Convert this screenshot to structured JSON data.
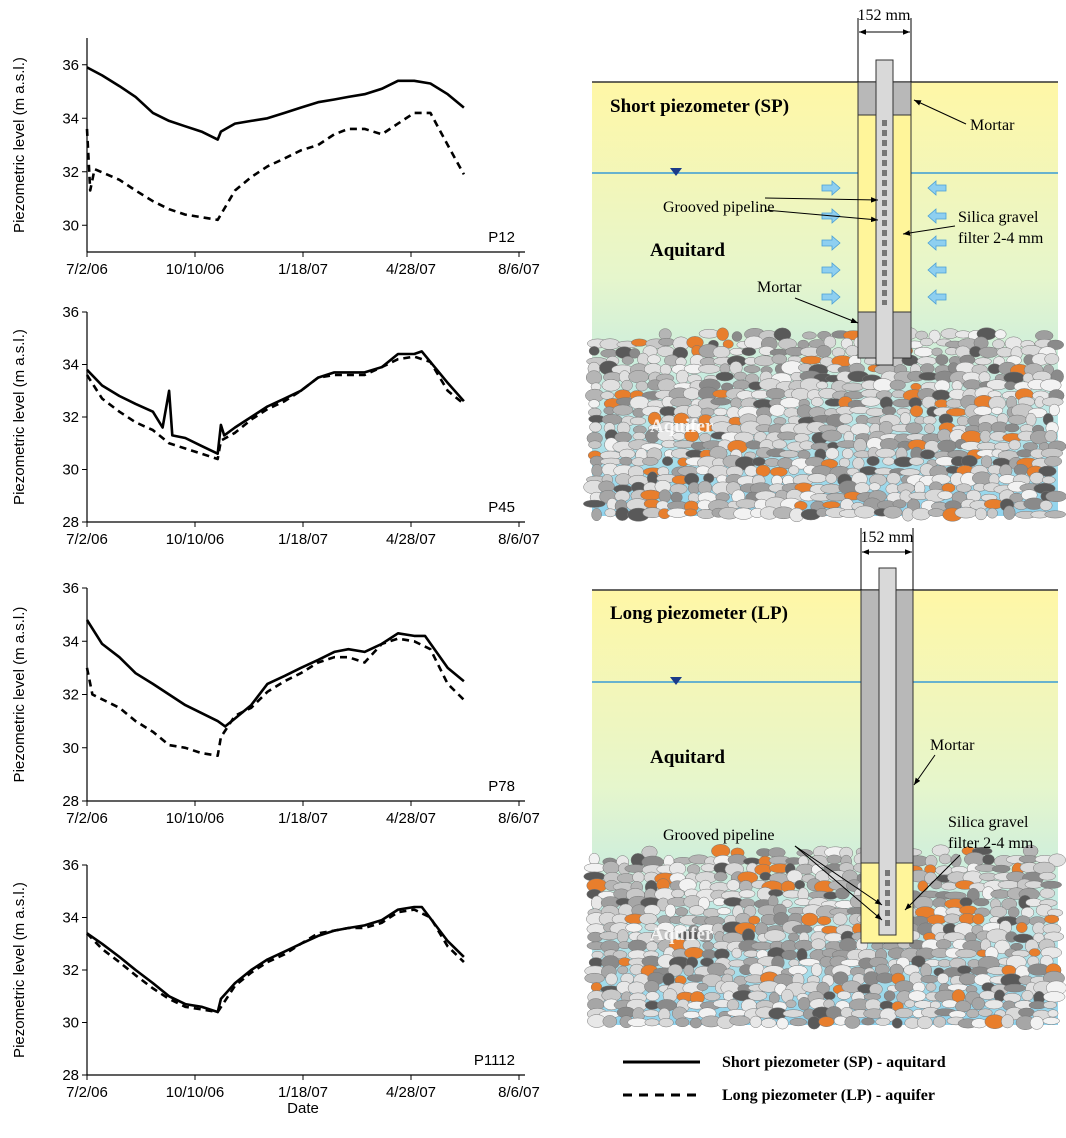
{
  "chart_data": [
    {
      "type": "line",
      "label": "P12",
      "ylabel": "Piezometric level (m a.s.l.)",
      "xlim": [
        "7/2/06",
        "8/6/07"
      ],
      "xticks": [
        "7/2/06",
        "10/10/06",
        "1/18/07",
        "4/28/07",
        "8/6/07"
      ],
      "ylim": [
        29,
        37
      ],
      "yticks": [
        30,
        32,
        34,
        36
      ],
      "series": [
        {
          "name": "Short piezometer (SP) - aquitard",
          "color": "#000000",
          "dash": false,
          "x": [
            "7/2/06",
            "7/16/06",
            "8/1/06",
            "8/16/06",
            "9/1/06",
            "9/16/06",
            "10/1/06",
            "10/16/06",
            "10/31/06",
            "11/3/06",
            "11/16/06",
            "12/1/06",
            "12/16/06",
            "1/1/07",
            "1/16/07",
            "2/1/07",
            "2/16/07",
            "3/1/07",
            "3/16/07",
            "4/1/07",
            "4/16/07",
            "5/1/07",
            "5/16/07",
            "6/1/07",
            "6/16/07"
          ],
          "values": [
            35.9,
            35.6,
            35.2,
            34.8,
            34.2,
            33.9,
            33.7,
            33.5,
            33.2,
            33.5,
            33.8,
            33.9,
            34.0,
            34.2,
            34.4,
            34.6,
            34.7,
            34.8,
            34.9,
            35.1,
            35.4,
            35.4,
            35.3,
            34.9,
            34.4
          ]
        },
        {
          "name": "Long piezometer (LP) - aquifer",
          "color": "#000000",
          "dash": true,
          "x": [
            "7/2/06",
            "7/5/06",
            "7/9/06",
            "8/1/06",
            "8/16/06",
            "9/1/06",
            "9/16/06",
            "10/1/06",
            "10/16/06",
            "10/31/06",
            "11/16/06",
            "12/1/06",
            "12/16/06",
            "1/1/07",
            "1/16/07",
            "2/1/07",
            "2/16/07",
            "3/1/07",
            "3/16/07",
            "4/1/07",
            "4/16/07",
            "5/1/07",
            "5/16/07",
            "6/1/07",
            "6/16/07"
          ],
          "values": [
            33.6,
            31.3,
            32.1,
            31.7,
            31.3,
            30.9,
            30.6,
            30.4,
            30.3,
            30.2,
            31.3,
            31.8,
            32.2,
            32.5,
            32.8,
            33.0,
            33.4,
            33.6,
            33.6,
            33.4,
            33.8,
            34.2,
            34.2,
            33.0,
            31.9
          ]
        }
      ]
    },
    {
      "type": "line",
      "label": "P45",
      "ylabel": "Piezometric level (m a.s.l.)",
      "xlim": [
        "7/2/06",
        "8/6/07"
      ],
      "xticks": [
        "7/2/06",
        "10/10/06",
        "1/18/07",
        "4/28/07",
        "8/6/07"
      ],
      "ylim": [
        28,
        36
      ],
      "yticks": [
        28,
        30,
        32,
        34,
        36
      ],
      "series": [
        {
          "color": "#000000",
          "dash": false,
          "x": [
            "7/2/06",
            "7/16/06",
            "8/1/06",
            "8/16/06",
            "9/1/06",
            "9/10/06",
            "9/16/06",
            "9/19/06",
            "10/1/06",
            "10/16/06",
            "10/31/06",
            "11/3/06",
            "11/6/06",
            "11/16/06",
            "12/1/06",
            "12/16/06",
            "1/1/07",
            "1/16/07",
            "2/1/07",
            "2/16/07",
            "3/1/07",
            "3/16/07",
            "4/1/07",
            "4/16/07",
            "5/1/07",
            "5/8/07",
            "6/1/07",
            "6/16/07"
          ],
          "values": [
            33.8,
            33.2,
            32.8,
            32.5,
            32.2,
            31.6,
            33.0,
            31.3,
            31.2,
            30.9,
            30.6,
            31.7,
            31.3,
            31.6,
            32.0,
            32.4,
            32.7,
            33.0,
            33.5,
            33.7,
            33.7,
            33.7,
            33.9,
            34.4,
            34.4,
            34.5,
            33.3,
            32.6
          ]
        },
        {
          "color": "#000000",
          "dash": true,
          "x": [
            "7/2/06",
            "7/16/06",
            "8/1/06",
            "8/16/06",
            "9/1/06",
            "9/16/06",
            "10/1/06",
            "10/16/06",
            "10/31/06",
            "11/3/06",
            "11/16/06",
            "12/1/06",
            "12/16/06",
            "1/1/07",
            "1/16/07",
            "2/1/07",
            "2/16/07",
            "3/1/07",
            "3/16/07",
            "4/1/07",
            "4/16/07",
            "5/1/07",
            "5/16/07",
            "6/1/07",
            "6/16/07"
          ],
          "values": [
            33.6,
            32.7,
            32.2,
            31.8,
            31.5,
            31.0,
            30.8,
            30.6,
            30.4,
            31.1,
            31.4,
            31.9,
            32.3,
            32.6,
            33.0,
            33.5,
            33.6,
            33.6,
            33.6,
            33.9,
            34.2,
            34.3,
            34.1,
            33.0,
            32.5
          ]
        }
      ]
    },
    {
      "type": "line",
      "label": "P78",
      "ylabel": "Piezometric level (m a.s.l.)",
      "xlim": [
        "7/2/06",
        "8/6/07"
      ],
      "xticks": [
        "7/2/06",
        "10/10/06",
        "1/18/07",
        "4/28/07",
        "8/6/07"
      ],
      "ylim": [
        28,
        36
      ],
      "yticks": [
        28,
        30,
        32,
        34,
        36
      ],
      "series": [
        {
          "color": "#000000",
          "dash": false,
          "x": [
            "7/2/06",
            "7/16/06",
            "8/1/06",
            "8/16/06",
            "9/1/06",
            "9/16/06",
            "10/1/06",
            "10/16/06",
            "10/31/06",
            "11/7/06",
            "11/16/06",
            "12/1/06",
            "12/16/06",
            "1/1/07",
            "1/16/07",
            "2/1/07",
            "2/16/07",
            "3/1/07",
            "3/16/07",
            "4/1/07",
            "4/16/07",
            "5/1/07",
            "5/11/07",
            "6/1/07",
            "6/16/07"
          ],
          "values": [
            34.8,
            33.9,
            33.4,
            32.8,
            32.4,
            32.0,
            31.6,
            31.3,
            31.0,
            30.8,
            31.1,
            31.6,
            32.4,
            32.7,
            33.0,
            33.3,
            33.6,
            33.7,
            33.6,
            33.9,
            34.3,
            34.2,
            34.2,
            33.0,
            32.5
          ]
        },
        {
          "color": "#000000",
          "dash": true,
          "x": [
            "7/2/06",
            "7/7/06",
            "8/1/06",
            "8/16/06",
            "9/1/06",
            "9/16/06",
            "10/1/06",
            "10/16/06",
            "10/31/06",
            "11/3/06",
            "11/16/06",
            "12/1/06",
            "12/16/06",
            "1/1/07",
            "1/16/07",
            "2/1/07",
            "2/16/07",
            "3/1/07",
            "3/16/07",
            "4/1/07",
            "4/16/07",
            "5/1/07",
            "5/16/07",
            "6/1/07",
            "6/16/07"
          ],
          "values": [
            33.0,
            32.0,
            31.5,
            31.0,
            30.6,
            30.1,
            30.0,
            29.8,
            29.7,
            30.4,
            31.2,
            31.5,
            32.1,
            32.5,
            32.8,
            33.2,
            33.4,
            33.4,
            33.2,
            33.9,
            34.1,
            34.0,
            33.7,
            32.4,
            31.8
          ]
        }
      ]
    },
    {
      "type": "line",
      "label": "P1112",
      "ylabel": "Piezometric level (m a.s.l.)",
      "xlabel": "Date",
      "xlim": [
        "7/2/06",
        "8/6/07"
      ],
      "xticks": [
        "7/2/06",
        "10/10/06",
        "1/18/07",
        "4/28/07",
        "8/6/07"
      ],
      "ylim": [
        28,
        36
      ],
      "yticks": [
        28,
        30,
        32,
        34,
        36
      ],
      "series": [
        {
          "color": "#000000",
          "dash": false,
          "x": [
            "7/2/06",
            "7/16/06",
            "8/1/06",
            "8/16/06",
            "9/1/06",
            "9/16/06",
            "10/1/06",
            "10/16/06",
            "10/31/06",
            "11/3/06",
            "11/16/06",
            "12/1/06",
            "12/16/06",
            "1/1/07",
            "1/16/07",
            "2/1/07",
            "2/16/07",
            "3/1/07",
            "3/16/07",
            "4/1/07",
            "4/16/07",
            "5/1/07",
            "5/8/07",
            "6/1/07",
            "6/16/07"
          ],
          "values": [
            33.4,
            33.0,
            32.5,
            32.0,
            31.5,
            31.0,
            30.7,
            30.6,
            30.4,
            30.9,
            31.5,
            32.0,
            32.4,
            32.7,
            33.0,
            33.3,
            33.5,
            33.6,
            33.7,
            33.9,
            34.3,
            34.4,
            34.4,
            33.1,
            32.5
          ]
        },
        {
          "color": "#000000",
          "dash": true,
          "x": [
            "7/2/06",
            "7/16/06",
            "8/1/06",
            "8/16/06",
            "9/1/06",
            "9/16/06",
            "10/1/06",
            "10/16/06",
            "10/31/06",
            "11/16/06",
            "12/1/06",
            "12/16/06",
            "1/1/07",
            "1/16/07",
            "2/1/07",
            "2/16/07",
            "3/1/07",
            "3/16/07",
            "4/1/07",
            "4/16/07",
            "5/1/07",
            "5/16/07",
            "6/1/07",
            "6/16/07"
          ],
          "values": [
            33.4,
            32.8,
            32.3,
            31.8,
            31.3,
            30.9,
            30.6,
            30.5,
            30.4,
            31.4,
            31.9,
            32.3,
            32.6,
            33.0,
            33.4,
            33.5,
            33.6,
            33.6,
            33.8,
            34.2,
            34.3,
            34.0,
            32.9,
            32.3
          ]
        }
      ]
    }
  ],
  "diagrams": [
    {
      "width": "152 mm",
      "title": "Short piezometer (SP)",
      "mortar_top": "Mortar",
      "grooved": "Grooved pipeline",
      "silica": [
        "Silica gravel",
        "filter 2-4 mm"
      ],
      "aquitard": "Aquitard",
      "mortar_bottom": "Mortar",
      "aquifer": "Aquifer"
    },
    {
      "width": "152 mm",
      "title": "Long piezometer (LP)",
      "mortar": "Mortar",
      "aquitard": "Aquitard",
      "grooved": "Grooved pipeline",
      "silica": [
        "Silica gravel",
        "filter 2-4 mm"
      ],
      "aquifer": "Aquifer"
    }
  ]
}
